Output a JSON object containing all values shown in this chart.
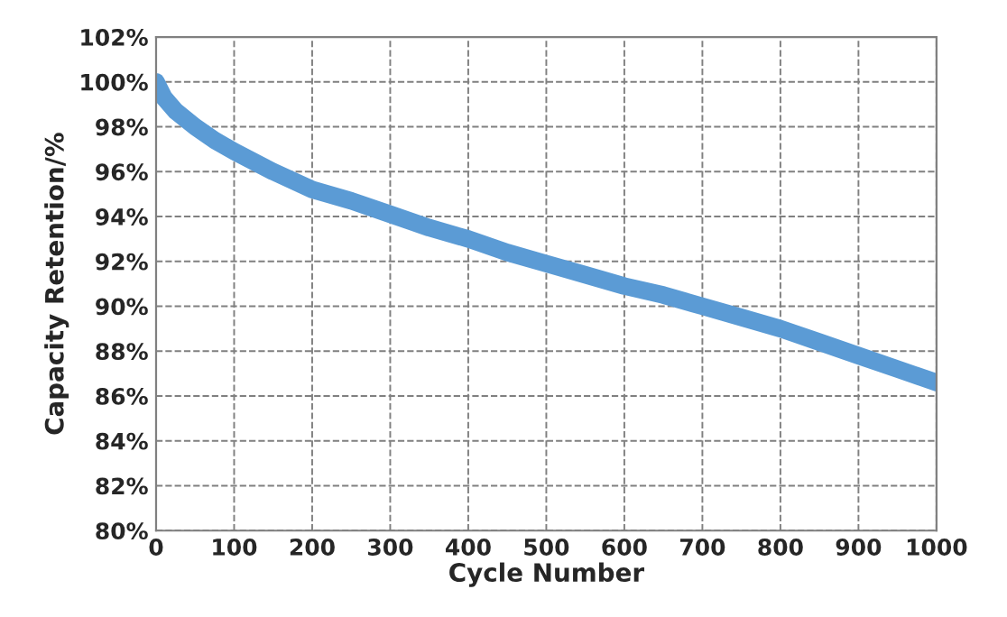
{
  "chart_data": {
    "type": "line",
    "xlabel": "Cycle Number",
    "ylabel": "Capacity Retention/%",
    "x": [
      0,
      10,
      25,
      50,
      75,
      100,
      150,
      200,
      250,
      300,
      350,
      400,
      450,
      500,
      550,
      600,
      650,
      700,
      750,
      800,
      850,
      900,
      950,
      1000
    ],
    "series": [
      {
        "color": "#5b9bd5",
        "values": [
          100,
          99.3,
          98.7,
          98.0,
          97.4,
          96.9,
          96.0,
          95.2,
          94.7,
          94.1,
          93.5,
          93.0,
          92.4,
          91.9,
          91.4,
          90.9,
          90.5,
          90.0,
          89.5,
          89.0,
          88.4,
          87.8,
          87.2,
          86.6
        ]
      }
    ],
    "xlim": [
      0,
      1000
    ],
    "xticks": [
      0,
      100,
      200,
      300,
      400,
      500,
      600,
      700,
      800,
      900,
      1000
    ],
    "ylim": [
      80,
      102
    ],
    "yticks": [
      {
        "value": 80,
        "label": "80%"
      },
      {
        "value": 82,
        "label": "82%"
      },
      {
        "value": 84,
        "label": "84%"
      },
      {
        "value": 86,
        "label": "86%"
      },
      {
        "value": 88,
        "label": "88%"
      },
      {
        "value": 90,
        "label": "90%"
      },
      {
        "value": 92,
        "label": "92%"
      },
      {
        "value": 94,
        "label": "94%"
      },
      {
        "value": 96,
        "label": "96%"
      },
      {
        "value": 98,
        "label": "98%"
      },
      {
        "value": 100,
        "label": "100%"
      },
      {
        "value": 102,
        "label": "102%"
      }
    ],
    "grid": true,
    "line_style": "solid",
    "marker": "none",
    "legend": false
  }
}
